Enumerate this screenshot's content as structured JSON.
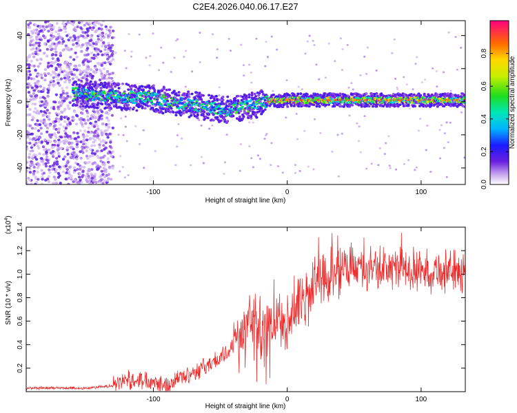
{
  "page": {
    "title": "C2E4.2026.040.06.17.E27"
  },
  "chart_data": [
    {
      "id": "spectrogram",
      "type": "heatmap",
      "title": "C2E4.2026.040.06.17.E27",
      "xlabel": "Height of straight line (km)",
      "ylabel": "Frequency (Hz)",
      "xlim": [
        -195,
        133
      ],
      "ylim": [
        -50,
        49
      ],
      "xticks": [
        -100,
        0,
        100
      ],
      "xtick_labels": [
        "-100",
        "0",
        "100"
      ],
      "yticks": [
        -40,
        -20,
        0,
        20,
        40
      ],
      "ytick_labels": [
        "-40",
        "-20",
        "0",
        "20",
        "40"
      ],
      "colorbar": {
        "label": "Normalized spectral amplitude",
        "range": [
          0,
          1
        ],
        "ticks": [
          0.0,
          0.2,
          0.4,
          0.6,
          0.8
        ],
        "tick_labels": [
          "0.0",
          "0.2",
          "0.4",
          "0.6",
          "0.8"
        ]
      },
      "trace_center_hz": [
        {
          "x": -158,
          "y": 5
        },
        {
          "x": -140,
          "y": 4
        },
        {
          "x": -120,
          "y": 3
        },
        {
          "x": -100,
          "y": 2
        },
        {
          "x": -80,
          "y": -1
        },
        {
          "x": -60,
          "y": -3
        },
        {
          "x": -45,
          "y": -5
        },
        {
          "x": -30,
          "y": -3
        },
        {
          "x": -15,
          "y": 0
        },
        {
          "x": 0,
          "y": 1
        },
        {
          "x": 50,
          "y": 1
        },
        {
          "x": 133,
          "y": 1
        }
      ]
    },
    {
      "id": "snr",
      "type": "line",
      "xlabel": "Height of straight line (km)",
      "ylabel": "SNR (10 * v/v)",
      "y_scale_label": "(x10",
      "y_scale_exponent": "4",
      "y_scale_close": ")",
      "xlim": [
        -195,
        133
      ],
      "ylim": [
        0,
        1.4
      ],
      "xticks": [
        -100,
        0,
        100
      ],
      "xtick_labels": [
        "-100",
        "0",
        "100"
      ],
      "yticks": [
        0.2,
        0.4,
        0.6,
        0.8,
        1.0,
        1.2,
        1.4
      ],
      "ytick_labels": [
        "0.2",
        "0.4",
        "0.6",
        "0.8",
        "1.0",
        "1.2",
        "1.4"
      ],
      "series_color": "#ee2a2a",
      "envelope": [
        {
          "x": -195,
          "y": 0.03
        },
        {
          "x": -150,
          "y": 0.03
        },
        {
          "x": -130,
          "y": 0.05
        },
        {
          "x": -120,
          "y": 0.1
        },
        {
          "x": -100,
          "y": 0.1
        },
        {
          "x": -90,
          "y": 0.05
        },
        {
          "x": -80,
          "y": 0.12
        },
        {
          "x": -60,
          "y": 0.22
        },
        {
          "x": -45,
          "y": 0.32
        },
        {
          "x": -35,
          "y": 0.5
        },
        {
          "x": -25,
          "y": 0.6
        },
        {
          "x": -20,
          "y": 0.55
        },
        {
          "x": -10,
          "y": 0.55
        },
        {
          "x": 0,
          "y": 0.62
        },
        {
          "x": 10,
          "y": 0.78
        },
        {
          "x": 20,
          "y": 0.88
        },
        {
          "x": 30,
          "y": 0.98
        },
        {
          "x": 40,
          "y": 1.05
        },
        {
          "x": 60,
          "y": 1.05
        },
        {
          "x": 80,
          "y": 1.05
        },
        {
          "x": 100,
          "y": 1.03
        },
        {
          "x": 133,
          "y": 1.02
        }
      ]
    }
  ]
}
